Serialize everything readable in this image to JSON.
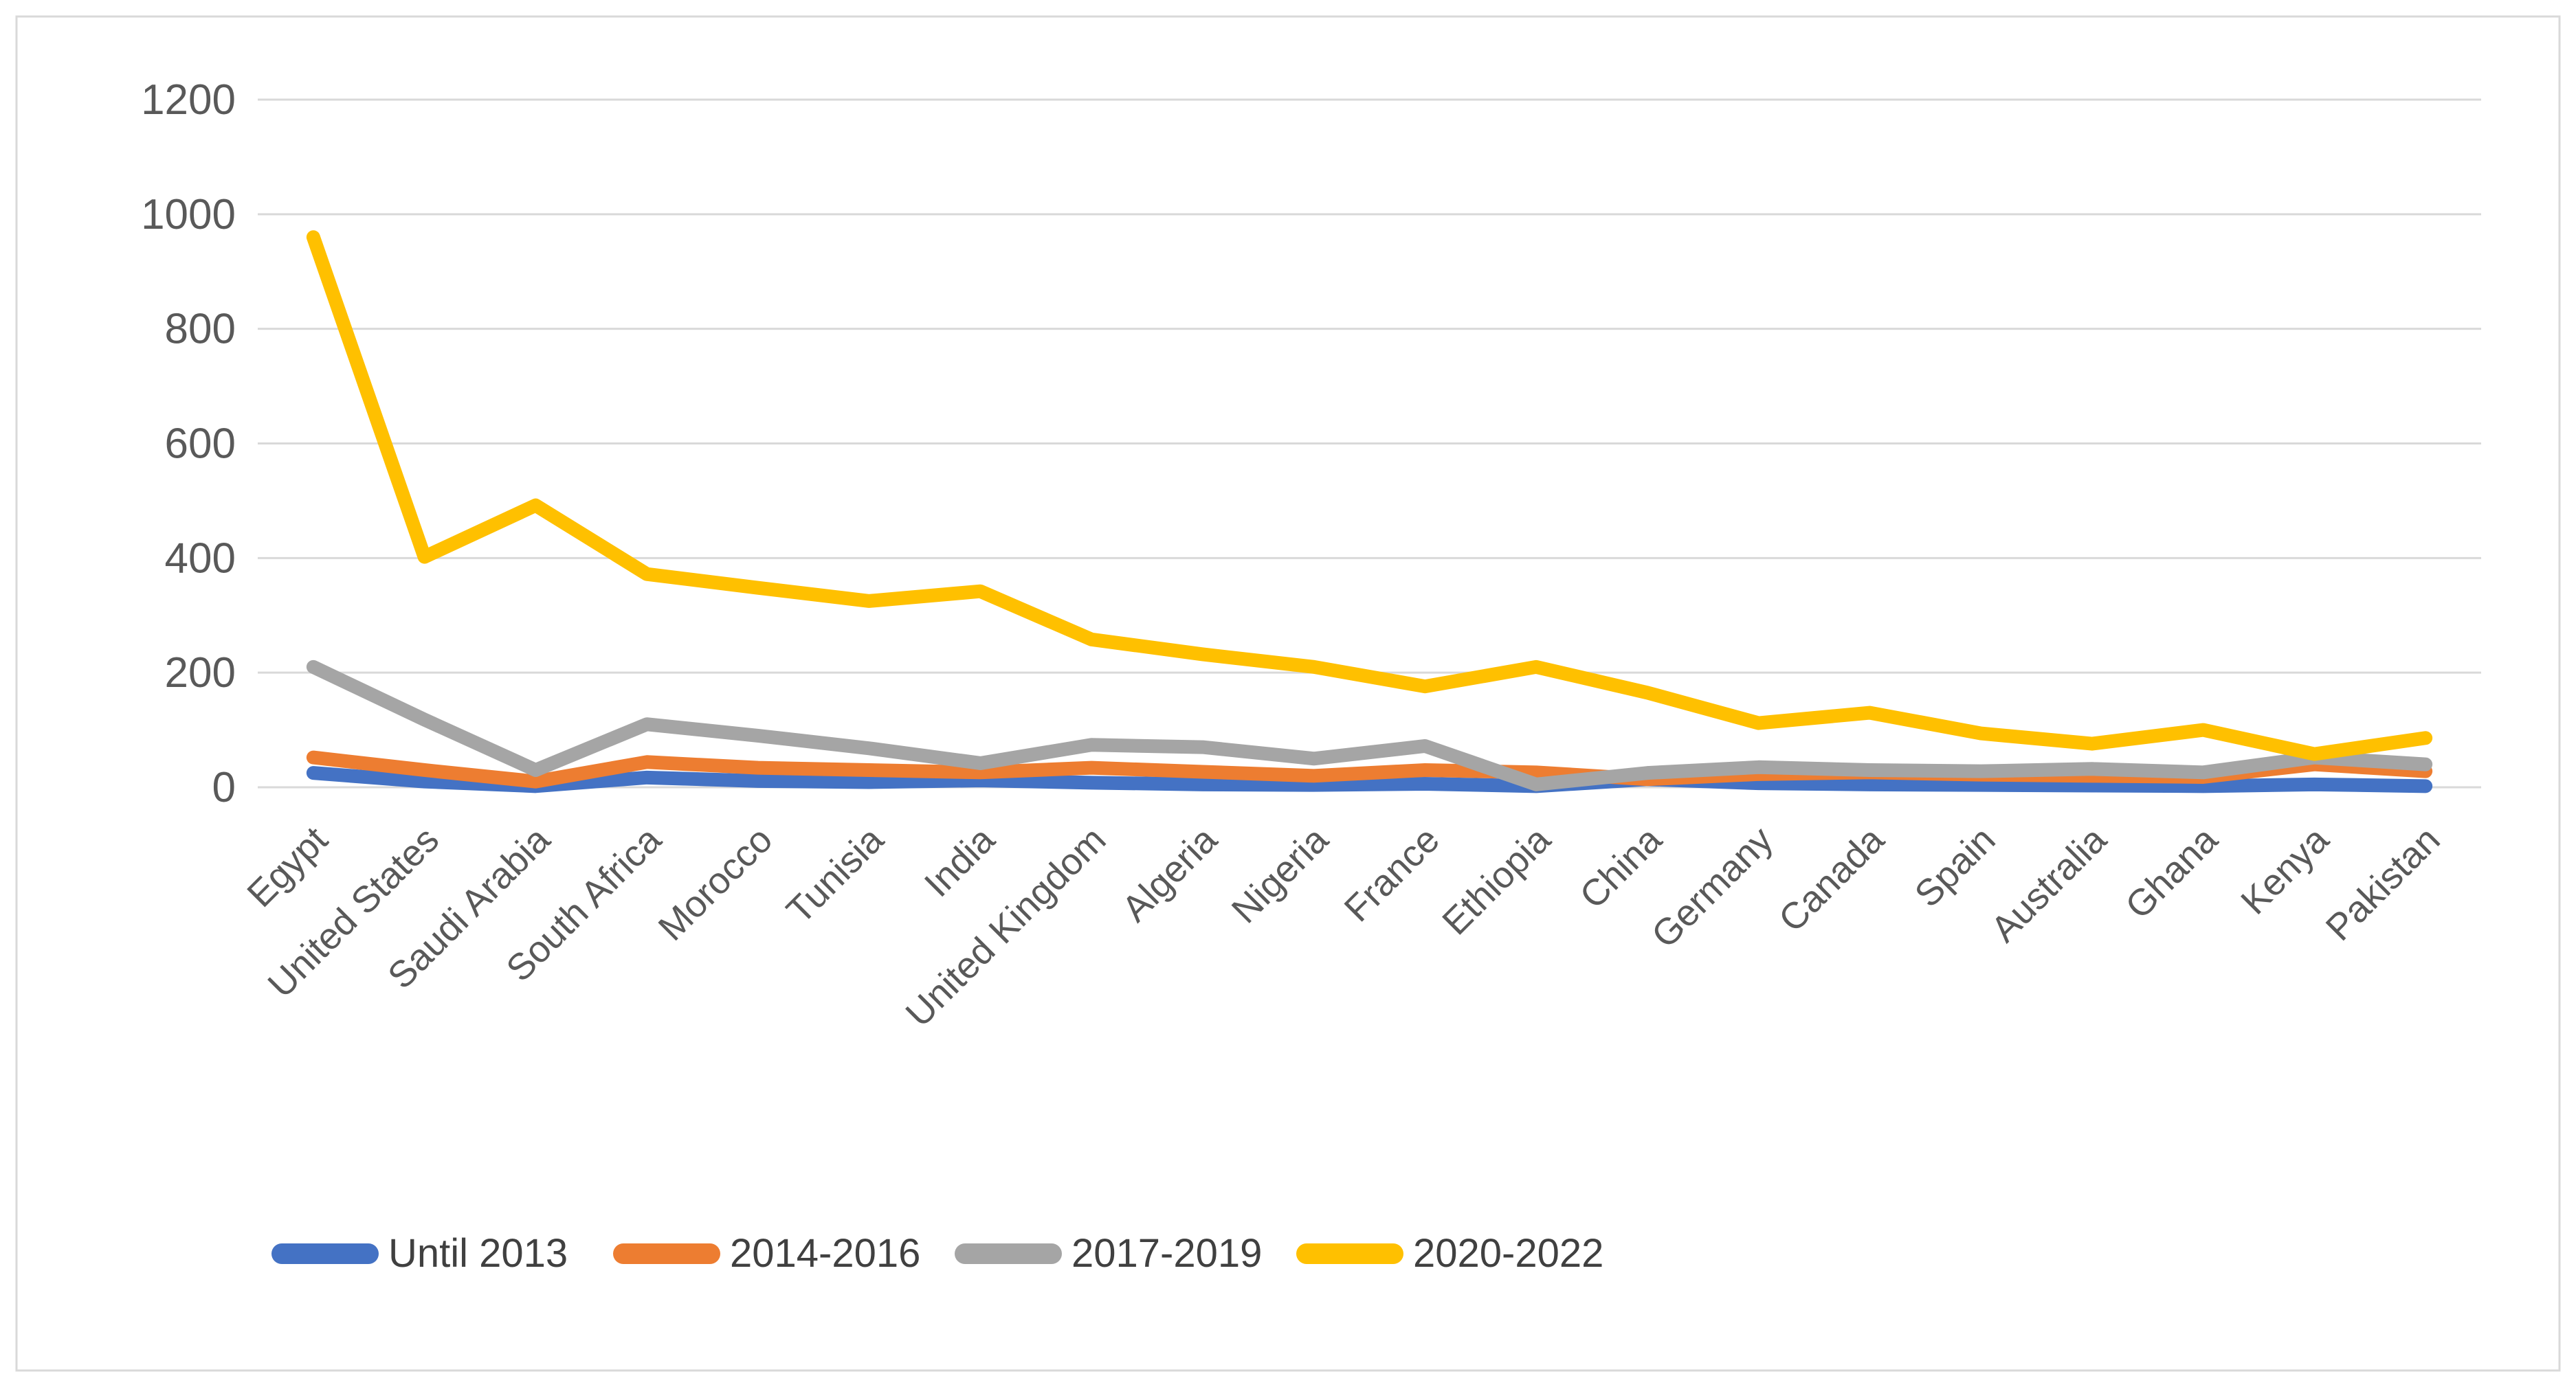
{
  "chart_data": {
    "type": "line",
    "title": "",
    "xlabel": "",
    "ylabel": "",
    "categories": [
      "Egypt",
      "United States",
      "Saudi Arabia",
      "South Africa",
      "Morocco",
      "Tunisia",
      "India",
      "United Kingdom",
      "Algeria",
      "Nigeria",
      "France",
      "Ethiopia",
      "China",
      "Germany",
      "Canada",
      "Spain",
      "Australia",
      "Ghana",
      "Kenya",
      "Pakistan"
    ],
    "series": [
      {
        "name": "Until 2013",
        "color": "#4472C4",
        "values": [
          25,
          10,
          2,
          17,
          11,
          9,
          12,
          8,
          5,
          4,
          6,
          2,
          14,
          7,
          5,
          4,
          3,
          2,
          5,
          2
        ]
      },
      {
        "name": "2014-2016",
        "color": "#ED7D31",
        "values": [
          52,
          30,
          10,
          44,
          34,
          30,
          26,
          34,
          27,
          20,
          30,
          26,
          14,
          23,
          26,
          22,
          20,
          18,
          40,
          28
        ]
      },
      {
        "name": "2017-2019",
        "color": "#A5A5A5",
        "values": [
          210,
          118,
          30,
          110,
          90,
          68,
          42,
          74,
          70,
          50,
          72,
          5,
          25,
          35,
          30,
          28,
          32,
          26,
          52,
          40
        ]
      },
      {
        "name": "2020-2022",
        "color": "#FFC000",
        "values": [
          960,
          402,
          492,
          372,
          348,
          325,
          342,
          258,
          232,
          210,
          176,
          210,
          165,
          112,
          130,
          94,
          76,
          100,
          58,
          86
        ]
      }
    ],
    "ylim": [
      0,
      1200
    ],
    "y_ticks": [
      0,
      200,
      400,
      600,
      800,
      1000,
      1200
    ],
    "grid": true,
    "legend_position": "bottom"
  },
  "styles": {
    "axis_text_color": "#595959",
    "legend_text_color": "#404040",
    "grid_color": "#D9D9D9",
    "border_color": "#D9D9D9",
    "background": "#FFFFFF"
  }
}
